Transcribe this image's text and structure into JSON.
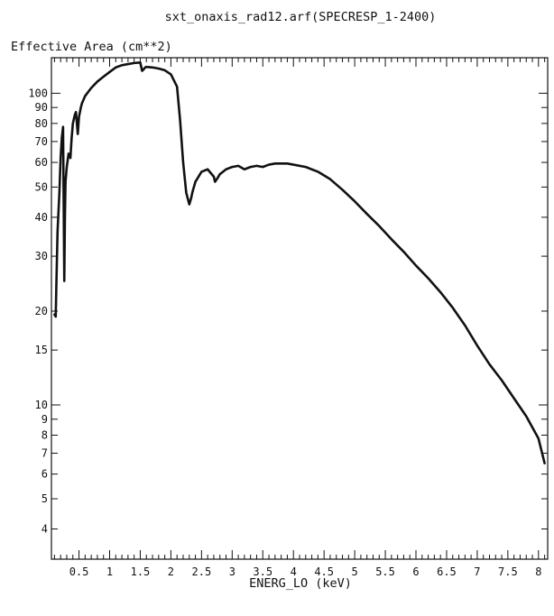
{
  "chart_data": {
    "type": "line",
    "title": "sxt_onaxis_rad12.arf(SPECRESP_1-2400)",
    "ylabel": "Effective Area (cm**2)",
    "xlabel": "ENERG_LO (keV)",
    "xscale": "linear",
    "yscale": "log",
    "xlim": [
      0.05,
      8.15
    ],
    "ylim": [
      3.2,
      130
    ],
    "grid": false,
    "legend": "none",
    "line_color": "#111111",
    "x_major_ticks": [
      0.5,
      1,
      1.5,
      2,
      2.5,
      3,
      3.5,
      4,
      4.5,
      5,
      5.5,
      6,
      6.5,
      7,
      7.5,
      8
    ],
    "x_tick_labels": [
      "0.5",
      "1",
      "1.5",
      "2",
      "2.5",
      "3",
      "3.5",
      "4",
      "4.5",
      "5",
      "5.5",
      "6",
      "6.5",
      "7",
      "7.5",
      "8"
    ],
    "y_ticks": [
      4,
      5,
      6,
      7,
      8,
      9,
      10,
      15,
      20,
      30,
      40,
      50,
      60,
      70,
      80,
      90,
      100
    ],
    "y_tick_labels": [
      "4",
      "5",
      "6",
      "7",
      "8",
      "9",
      "10",
      "15",
      "20",
      "30",
      "40",
      "50",
      "60",
      "70",
      "80",
      "90",
      "100"
    ],
    "series": [
      {
        "x": [
          0.1,
          0.12,
          0.13,
          0.15,
          0.18,
          0.2,
          0.22,
          0.24,
          0.26,
          0.27,
          0.28,
          0.3,
          0.33,
          0.36,
          0.38,
          0.4,
          0.43,
          0.45,
          0.48,
          0.5,
          0.52,
          0.53,
          0.55,
          0.6,
          0.7,
          0.8,
          0.9,
          1.0,
          1.1,
          1.2,
          1.3,
          1.4,
          1.5,
          1.53,
          1.55,
          1.58,
          1.6,
          1.7,
          1.8,
          1.9,
          2.0,
          2.1,
          2.15,
          2.2,
          2.25,
          2.3,
          2.33,
          2.35,
          2.4,
          2.5,
          2.6,
          2.7,
          2.72,
          2.75,
          2.8,
          2.9,
          3.0,
          3.1,
          3.2,
          3.3,
          3.4,
          3.5,
          3.6,
          3.7,
          3.8,
          3.9,
          4.0,
          4.2,
          4.4,
          4.6,
          4.8,
          5.0,
          5.2,
          5.4,
          5.6,
          5.8,
          6.0,
          6.2,
          6.4,
          6.6,
          6.8,
          7.0,
          7.2,
          7.4,
          7.6,
          7.8,
          8.0,
          8.1
        ],
        "y": [
          19.5,
          19.2,
          24,
          36,
          48,
          62,
          72,
          78,
          25,
          40,
          52,
          58,
          64,
          62,
          72,
          80,
          85,
          87,
          74,
          84,
          88,
          90,
          93,
          98,
          104,
          109,
          113,
          117,
          121,
          123,
          124,
          125,
          125.5,
          118,
          119,
          121,
          121.5,
          121,
          120,
          118.5,
          115,
          105,
          82,
          60,
          48,
          44,
          46,
          48,
          52,
          56,
          57,
          54,
          52,
          53,
          55,
          57,
          58,
          58.5,
          57,
          58,
          58.5,
          58,
          59,
          59.5,
          59.5,
          59.5,
          59,
          58,
          56,
          53,
          49,
          45,
          41,
          37.5,
          34,
          31,
          28,
          25.5,
          23,
          20.5,
          18,
          15.5,
          13.5,
          12,
          10.5,
          9.2,
          7.8,
          6.5
        ]
      }
    ]
  }
}
